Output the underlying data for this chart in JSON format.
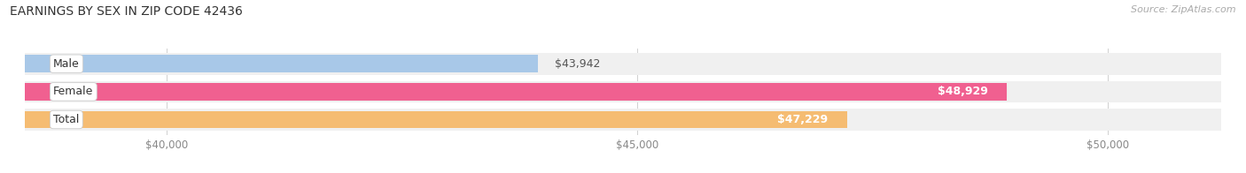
{
  "title": "EARNINGS BY SEX IN ZIP CODE 42436",
  "source": "Source: ZipAtlas.com",
  "categories": [
    "Male",
    "Female",
    "Total"
  ],
  "values": [
    43942,
    48929,
    47229
  ],
  "bar_colors": [
    "#a8c8e8",
    "#f06090",
    "#f5bc72"
  ],
  "bar_bg_color": "#f0f0f0",
  "xmin": 38500,
  "xmax": 51200,
  "xticks": [
    40000,
    45000,
    50000
  ],
  "xtick_labels": [
    "$40,000",
    "$45,000",
    "$50,000"
  ],
  "title_fontsize": 10,
  "source_fontsize": 8,
  "bar_label_fontsize": 9,
  "tick_fontsize": 8.5,
  "category_fontsize": 9
}
